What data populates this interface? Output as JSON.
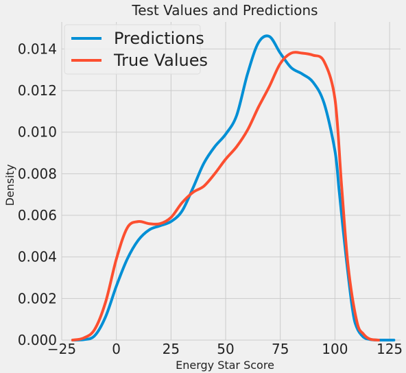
{
  "chart_data": {
    "type": "line",
    "title": "Test Values and Predictions",
    "xlabel": "Energy Star Score",
    "ylabel": "Density",
    "xlim": [
      -25,
      130
    ],
    "ylim": [
      0,
      0.0153
    ],
    "x_ticks": [
      -25,
      0,
      25,
      50,
      75,
      100,
      125
    ],
    "x_tick_labels": [
      "−25",
      "0",
      "25",
      "50",
      "75",
      "100",
      "125"
    ],
    "y_ticks": [
      0,
      0.002,
      0.004,
      0.006,
      0.008,
      0.01,
      0.012,
      0.014
    ],
    "y_tick_labels": [
      "0.000",
      "0.002",
      "0.004",
      "0.006",
      "0.008",
      "0.010",
      "0.012",
      "0.014"
    ],
    "grid": true,
    "legend_position": "top-left",
    "series": [
      {
        "name": "Predictions",
        "color": "#008fd5",
        "x": [
          -20,
          -15,
          -10,
          -5,
          0,
          5,
          10,
          15,
          20,
          25,
          30,
          35,
          40,
          45,
          50,
          55,
          60,
          65,
          70,
          75,
          80,
          85,
          90,
          95,
          100,
          102,
          105,
          108,
          110,
          113,
          116,
          120,
          127
        ],
        "y": [
          0.0,
          2e-05,
          0.0002,
          0.0011,
          0.0026,
          0.0039,
          0.0048,
          0.0053,
          0.0055,
          0.0057,
          0.0062,
          0.0073,
          0.0085,
          0.0093,
          0.0099,
          0.0108,
          0.0128,
          0.0143,
          0.0146,
          0.0138,
          0.0131,
          0.0128,
          0.0124,
          0.0114,
          0.0091,
          0.0071,
          0.0041,
          0.0015,
          0.0006,
          0.00015,
          3e-05,
          0.0,
          0.0
        ]
      },
      {
        "name": "True Values",
        "color": "#fc4f30",
        "x": [
          -20,
          -15,
          -10,
          -5,
          0,
          5,
          10,
          15,
          20,
          25,
          30,
          35,
          40,
          45,
          50,
          55,
          60,
          65,
          70,
          75,
          80,
          85,
          90,
          95,
          100,
          103,
          106,
          110,
          113,
          116,
          120
        ],
        "y": [
          0.0,
          0.0001,
          0.0005,
          0.0018,
          0.0039,
          0.0054,
          0.0057,
          0.0056,
          0.0056,
          0.0059,
          0.0066,
          0.0071,
          0.0074,
          0.008,
          0.0087,
          0.0093,
          0.0101,
          0.0112,
          0.0122,
          0.0133,
          0.0138,
          0.0138,
          0.0137,
          0.0134,
          0.0116,
          0.0075,
          0.0036,
          0.0009,
          0.0003,
          5e-05,
          0.0
        ]
      }
    ]
  }
}
